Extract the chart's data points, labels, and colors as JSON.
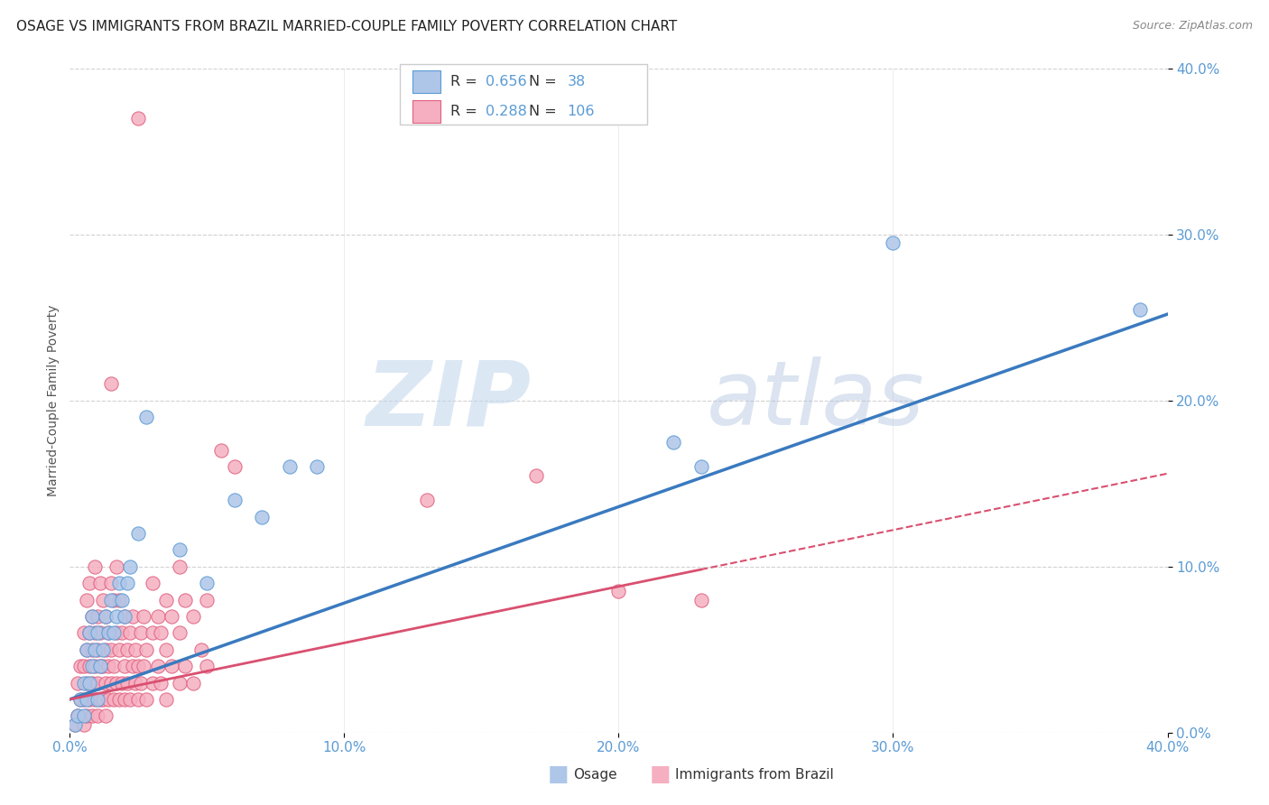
{
  "title": "OSAGE VS IMMIGRANTS FROM BRAZIL MARRIED-COUPLE FAMILY POVERTY CORRELATION CHART",
  "source": "Source: ZipAtlas.com",
  "ylabel": "Married-Couple Family Poverty",
  "xlim": [
    0.0,
    0.4
  ],
  "ylim": [
    0.0,
    0.4
  ],
  "xticks": [
    0.0,
    0.1,
    0.2,
    0.3,
    0.4
  ],
  "yticks": [
    0.0,
    0.1,
    0.2,
    0.3,
    0.4
  ],
  "xticklabels": [
    "0.0%",
    "10.0%",
    "20.0%",
    "30.0%",
    "40.0%"
  ],
  "yticklabels": [
    "0.0%",
    "10.0%",
    "20.0%",
    "30.0%",
    "40.0%"
  ],
  "osage_color": "#aec6e8",
  "brazil_color": "#f5afc0",
  "osage_edge_color": "#5b9bd5",
  "brazil_edge_color": "#e06080",
  "osage_line_color": "#3a7abf",
  "brazil_line_color": "#d95070",
  "tick_color": "#5b9bd5",
  "osage_R": 0.656,
  "osage_N": 38,
  "brazil_R": 0.288,
  "brazil_N": 106,
  "legend_label_osage": "Osage",
  "legend_label_brazil": "Immigrants from Brazil",
  "watermark_zip": "ZIP",
  "watermark_atlas": "atlas",
  "title_fontsize": 11,
  "axis_label_fontsize": 10,
  "tick_fontsize": 11,
  "osage_scatter": [
    [
      0.002,
      0.005
    ],
    [
      0.003,
      0.01
    ],
    [
      0.004,
      0.02
    ],
    [
      0.005,
      0.01
    ],
    [
      0.005,
      0.03
    ],
    [
      0.006,
      0.02
    ],
    [
      0.006,
      0.05
    ],
    [
      0.007,
      0.03
    ],
    [
      0.007,
      0.06
    ],
    [
      0.008,
      0.04
    ],
    [
      0.008,
      0.07
    ],
    [
      0.009,
      0.05
    ],
    [
      0.01,
      0.02
    ],
    [
      0.01,
      0.06
    ],
    [
      0.011,
      0.04
    ],
    [
      0.012,
      0.05
    ],
    [
      0.013,
      0.07
    ],
    [
      0.014,
      0.06
    ],
    [
      0.015,
      0.08
    ],
    [
      0.016,
      0.06
    ],
    [
      0.017,
      0.07
    ],
    [
      0.018,
      0.09
    ],
    [
      0.019,
      0.08
    ],
    [
      0.02,
      0.07
    ],
    [
      0.021,
      0.09
    ],
    [
      0.022,
      0.1
    ],
    [
      0.025,
      0.12
    ],
    [
      0.028,
      0.19
    ],
    [
      0.04,
      0.11
    ],
    [
      0.05,
      0.09
    ],
    [
      0.06,
      0.14
    ],
    [
      0.07,
      0.13
    ],
    [
      0.08,
      0.16
    ],
    [
      0.09,
      0.16
    ],
    [
      0.22,
      0.175
    ],
    [
      0.23,
      0.16
    ],
    [
      0.3,
      0.295
    ],
    [
      0.39,
      0.255
    ]
  ],
  "brazil_scatter": [
    [
      0.002,
      0.005
    ],
    [
      0.003,
      0.01
    ],
    [
      0.003,
      0.03
    ],
    [
      0.004,
      0.02
    ],
    [
      0.004,
      0.04
    ],
    [
      0.005,
      0.005
    ],
    [
      0.005,
      0.02
    ],
    [
      0.005,
      0.04
    ],
    [
      0.005,
      0.06
    ],
    [
      0.006,
      0.01
    ],
    [
      0.006,
      0.03
    ],
    [
      0.006,
      0.05
    ],
    [
      0.006,
      0.08
    ],
    [
      0.007,
      0.02
    ],
    [
      0.007,
      0.04
    ],
    [
      0.007,
      0.06
    ],
    [
      0.007,
      0.09
    ],
    [
      0.008,
      0.01
    ],
    [
      0.008,
      0.03
    ],
    [
      0.008,
      0.05
    ],
    [
      0.008,
      0.07
    ],
    [
      0.009,
      0.02
    ],
    [
      0.009,
      0.04
    ],
    [
      0.009,
      0.06
    ],
    [
      0.009,
      0.1
    ],
    [
      0.01,
      0.01
    ],
    [
      0.01,
      0.03
    ],
    [
      0.01,
      0.05
    ],
    [
      0.01,
      0.07
    ],
    [
      0.011,
      0.02
    ],
    [
      0.011,
      0.04
    ],
    [
      0.011,
      0.06
    ],
    [
      0.011,
      0.09
    ],
    [
      0.012,
      0.02
    ],
    [
      0.012,
      0.04
    ],
    [
      0.012,
      0.08
    ],
    [
      0.013,
      0.01
    ],
    [
      0.013,
      0.03
    ],
    [
      0.013,
      0.05
    ],
    [
      0.013,
      0.07
    ],
    [
      0.014,
      0.02
    ],
    [
      0.014,
      0.04
    ],
    [
      0.014,
      0.06
    ],
    [
      0.015,
      0.03
    ],
    [
      0.015,
      0.05
    ],
    [
      0.015,
      0.09
    ],
    [
      0.015,
      0.21
    ],
    [
      0.016,
      0.02
    ],
    [
      0.016,
      0.04
    ],
    [
      0.016,
      0.08
    ],
    [
      0.017,
      0.03
    ],
    [
      0.017,
      0.06
    ],
    [
      0.017,
      0.1
    ],
    [
      0.018,
      0.02
    ],
    [
      0.018,
      0.05
    ],
    [
      0.018,
      0.08
    ],
    [
      0.019,
      0.03
    ],
    [
      0.019,
      0.06
    ],
    [
      0.02,
      0.02
    ],
    [
      0.02,
      0.04
    ],
    [
      0.02,
      0.07
    ],
    [
      0.021,
      0.03
    ],
    [
      0.021,
      0.05
    ],
    [
      0.022,
      0.02
    ],
    [
      0.022,
      0.06
    ],
    [
      0.023,
      0.04
    ],
    [
      0.023,
      0.07
    ],
    [
      0.024,
      0.03
    ],
    [
      0.024,
      0.05
    ],
    [
      0.025,
      0.02
    ],
    [
      0.025,
      0.04
    ],
    [
      0.025,
      0.37
    ],
    [
      0.026,
      0.03
    ],
    [
      0.026,
      0.06
    ],
    [
      0.027,
      0.04
    ],
    [
      0.027,
      0.07
    ],
    [
      0.028,
      0.02
    ],
    [
      0.028,
      0.05
    ],
    [
      0.03,
      0.03
    ],
    [
      0.03,
      0.06
    ],
    [
      0.03,
      0.09
    ],
    [
      0.032,
      0.04
    ],
    [
      0.032,
      0.07
    ],
    [
      0.033,
      0.03
    ],
    [
      0.033,
      0.06
    ],
    [
      0.035,
      0.02
    ],
    [
      0.035,
      0.05
    ],
    [
      0.035,
      0.08
    ],
    [
      0.037,
      0.04
    ],
    [
      0.037,
      0.07
    ],
    [
      0.04,
      0.03
    ],
    [
      0.04,
      0.06
    ],
    [
      0.04,
      0.1
    ],
    [
      0.042,
      0.04
    ],
    [
      0.042,
      0.08
    ],
    [
      0.045,
      0.03
    ],
    [
      0.045,
      0.07
    ],
    [
      0.048,
      0.05
    ],
    [
      0.05,
      0.04
    ],
    [
      0.05,
      0.08
    ],
    [
      0.055,
      0.17
    ],
    [
      0.06,
      0.16
    ],
    [
      0.13,
      0.14
    ],
    [
      0.17,
      0.155
    ],
    [
      0.2,
      0.085
    ],
    [
      0.23,
      0.08
    ]
  ]
}
